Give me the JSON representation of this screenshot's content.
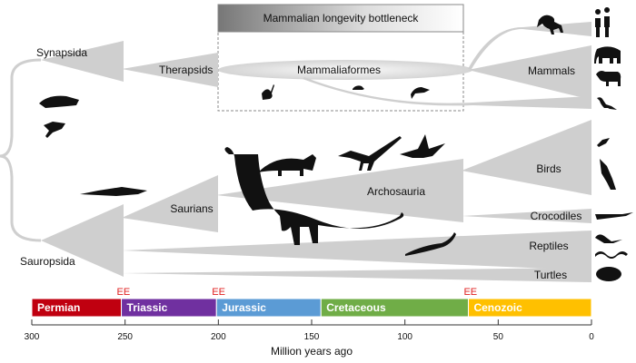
{
  "bottleneck_title": "Mammalian longevity bottleneck",
  "clades": {
    "synapsida": "Synapsida",
    "therapsids": "Therapsids",
    "mammaliaformes": "Mammaliaformes",
    "mammals": "Mammals",
    "sauropsida": "Sauropsida",
    "saurians": "Saurians",
    "archosauria": "Archosauria",
    "birds": "Birds",
    "crocodiles": "Crocodiles",
    "reptiles": "Reptiles",
    "turtles": "Turtles"
  },
  "extinction_label": "EE",
  "extinction_events_mya": [
    252,
    201,
    66
  ],
  "eras": [
    {
      "name": "Permian",
      "start": 300,
      "end": 252,
      "color": "#c00010"
    },
    {
      "name": "Triassic",
      "start": 252,
      "end": 201,
      "color": "#7030a0"
    },
    {
      "name": "Jurassic",
      "start": 201,
      "end": 145,
      "color": "#5b9bd5"
    },
    {
      "name": "Cretaceous",
      "start": 145,
      "end": 66,
      "color": "#70ad47"
    },
    {
      "name": "Cenozoic",
      "start": 66,
      "end": 0,
      "color": "#ffc000"
    }
  ],
  "axis": {
    "ticks": [
      "300",
      "250",
      "200",
      "150",
      "100",
      "50",
      "0"
    ],
    "title": "Million years ago"
  }
}
